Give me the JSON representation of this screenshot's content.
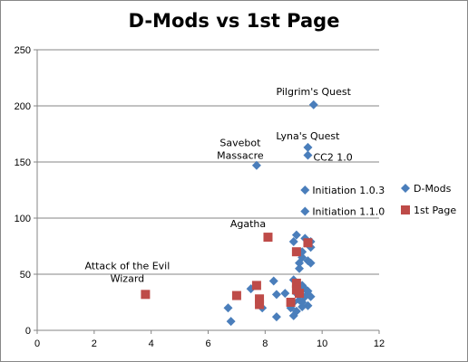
{
  "chart_data": {
    "type": "scatter",
    "title": "D-Mods vs 1st Page",
    "xlabel": "",
    "ylabel": "",
    "xlim": [
      0,
      12
    ],
    "ylim": [
      0,
      250
    ],
    "xticks": [
      "0",
      "2",
      "4",
      "6",
      "8",
      "10",
      "12"
    ],
    "yticks": [
      "0",
      "50",
      "100",
      "150",
      "200",
      "250"
    ],
    "grid": "horizontal",
    "legend_position": "right",
    "colors": {
      "D-Mods": "#4a7ebb",
      "1st Page": "#be4b48"
    },
    "series": [
      {
        "name": "D-Mods",
        "marker": "diamond",
        "points": [
          [
            9.7,
            201
          ],
          [
            9.5,
            163
          ],
          [
            7.7,
            147
          ],
          [
            9.5,
            156
          ],
          [
            9.4,
            125
          ],
          [
            9.4,
            106
          ],
          [
            9.1,
            85
          ],
          [
            9.0,
            79
          ],
          [
            9.4,
            82
          ],
          [
            9.6,
            79
          ],
          [
            9.6,
            74
          ],
          [
            9.3,
            70
          ],
          [
            9.3,
            65
          ],
          [
            9.2,
            60
          ],
          [
            9.5,
            62
          ],
          [
            9.6,
            60
          ],
          [
            9.2,
            55
          ],
          [
            8.3,
            44
          ],
          [
            7.5,
            37
          ],
          [
            9.0,
            45
          ],
          [
            9.3,
            40
          ],
          [
            9.4,
            37
          ],
          [
            9.1,
            33
          ],
          [
            8.4,
            32
          ],
          [
            8.7,
            33
          ],
          [
            9.5,
            35
          ],
          [
            9.4,
            30
          ],
          [
            9.6,
            30
          ],
          [
            9.2,
            27
          ],
          [
            9.0,
            25
          ],
          [
            9.3,
            25
          ],
          [
            9.5,
            22
          ],
          [
            8.9,
            20
          ],
          [
            9.1,
            17
          ],
          [
            9.0,
            13
          ],
          [
            6.7,
            20
          ],
          [
            7.9,
            20
          ],
          [
            8.4,
            12
          ],
          [
            6.8,
            8
          ],
          [
            9.3,
            21
          ]
        ]
      },
      {
        "name": "1st Page",
        "marker": "square",
        "points": [
          [
            8.1,
            83
          ],
          [
            9.1,
            70
          ],
          [
            9.5,
            78
          ],
          [
            3.8,
            32
          ],
          [
            7.0,
            31
          ],
          [
            7.8,
            28
          ],
          [
            7.8,
            23
          ],
          [
            7.7,
            40
          ],
          [
            9.1,
            42
          ],
          [
            9.1,
            36
          ],
          [
            9.2,
            33
          ],
          [
            8.9,
            25
          ]
        ]
      }
    ],
    "annotations": [
      {
        "lines": [
          "Pilgrim's Quest"
        ],
        "x": 9.7,
        "y": 201
      },
      {
        "lines": [
          "Lyna's Quest"
        ],
        "x": 9.5,
        "y": 163
      },
      {
        "lines": [
          "Savebot",
          "Massacre"
        ],
        "x": 7.7,
        "y": 147
      },
      {
        "lines": [
          "CC2 1.0"
        ],
        "x": 9.5,
        "y": 156
      },
      {
        "lines": [
          "Initiation 1.0.3"
        ],
        "x": 9.4,
        "y": 125
      },
      {
        "lines": [
          "Initiation 1.1.0"
        ],
        "x": 9.4,
        "y": 106
      },
      {
        "lines": [
          "Agatha"
        ],
        "x": 8.1,
        "y": 83
      },
      {
        "lines": [
          "Attack of the Evil",
          "Wizard"
        ],
        "x": 3.8,
        "y": 32
      }
    ]
  }
}
